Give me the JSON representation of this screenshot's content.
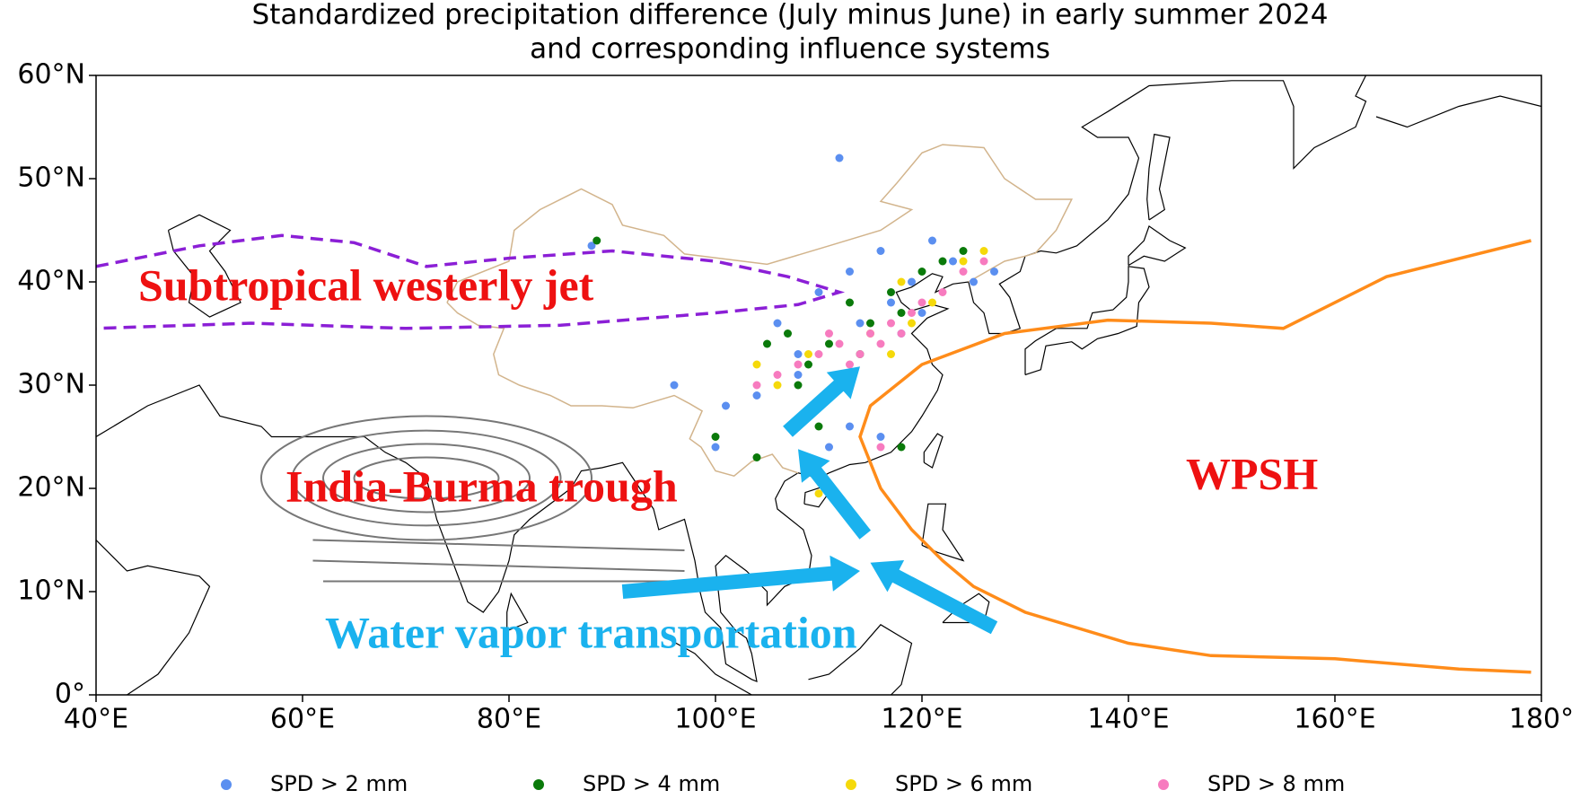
{
  "chart_data": {
    "type": "map",
    "title": [
      "Standardized precipitation difference (July minus June) in early summer 2024",
      "and corresponding influence systems"
    ],
    "xlim": [
      40,
      180
    ],
    "ylim": [
      0,
      60
    ],
    "xticks": [
      {
        "value": 40,
        "label": "40°E"
      },
      {
        "value": 60,
        "label": "60°E"
      },
      {
        "value": 80,
        "label": "80°E"
      },
      {
        "value": 100,
        "label": "100°E"
      },
      {
        "value": 120,
        "label": "120°E"
      },
      {
        "value": 140,
        "label": "140°E"
      },
      {
        "value": 160,
        "label": "160°E"
      },
      {
        "value": 180,
        "label": "180°"
      }
    ],
    "yticks": [
      {
        "value": 0,
        "label": "0°"
      },
      {
        "value": 10,
        "label": "10°N"
      },
      {
        "value": 20,
        "label": "20°N"
      },
      {
        "value": 30,
        "label": "30°N"
      },
      {
        "value": 40,
        "label": "40°N"
      },
      {
        "value": 50,
        "label": "50°N"
      },
      {
        "value": 60,
        "label": "60°N"
      }
    ],
    "annotations": [
      "Subtropical westerly jet",
      "India-Burma  trough",
      "WPSH",
      "Water vapor transportation"
    ],
    "series": [
      {
        "name": "SPD > 2 mm",
        "color": "#5b8ff0",
        "x": [
          112,
          88,
          104,
          106,
          108,
          110,
          113,
          116,
          117,
          119,
          121,
          123,
          100,
          101,
          113,
          116,
          118,
          96,
          108,
          120,
          125,
          114,
          111,
          127
        ],
        "y": [
          52,
          43.5,
          29,
          36,
          33,
          39,
          41,
          43,
          38,
          40,
          44,
          42,
          24,
          28,
          26,
          25,
          35,
          30,
          31,
          37,
          40,
          36,
          24,
          41
        ]
      },
      {
        "name": "SPD > 4 mm",
        "color": "#0a7a0a",
        "x": [
          88.5,
          100,
          105,
          107,
          109,
          111,
          113,
          115,
          117,
          120,
          122,
          124,
          104,
          110,
          118,
          114,
          108,
          118
        ],
        "y": [
          44,
          25,
          34,
          35,
          32,
          34,
          38,
          36,
          39,
          41,
          42,
          43,
          23,
          26,
          37,
          33,
          30,
          24
        ]
      },
      {
        "name": "SPD > 6 mm",
        "color": "#f5d90a",
        "x": [
          104,
          106,
          109,
          112,
          115,
          118,
          121,
          124,
          126,
          110,
          117,
          119
        ],
        "y": [
          32,
          30,
          33,
          31,
          35,
          40,
          38,
          42,
          43,
          19.5,
          33,
          36
        ]
      },
      {
        "name": "SPD > 8 mm",
        "color": "#f77bbf",
        "x": [
          104,
          106,
          108,
          110,
          112,
          114,
          115,
          116,
          117,
          118,
          119,
          120,
          122,
          124,
          126,
          116,
          113,
          111
        ],
        "y": [
          30,
          31,
          32,
          33,
          34,
          33,
          35,
          34,
          36,
          35,
          37,
          38,
          39,
          41,
          42,
          24,
          32,
          35
        ]
      }
    ],
    "jet": {
      "color": "#8b1fd6",
      "x": [
        40,
        50,
        58,
        65,
        72,
        80,
        90,
        100,
        107,
        112,
        108,
        100,
        85,
        70,
        55,
        40
      ],
      "y": [
        41.5,
        43.5,
        44.5,
        43.8,
        41.5,
        42.3,
        43,
        42,
        40.5,
        39,
        37.8,
        37,
        35.8,
        35.5,
        36,
        35.5
      ]
    },
    "wpsh": {
      "color": "#ff8c1a",
      "x": [
        179,
        165,
        155,
        148,
        138,
        128,
        120,
        115,
        114,
        116,
        119,
        122,
        125,
        130,
        140,
        148,
        160,
        172,
        179
      ],
      "y": [
        44,
        40.5,
        35.5,
        36,
        36.3,
        35,
        32,
        28,
        25,
        20,
        16,
        13,
        10.5,
        8,
        5,
        3.8,
        3.5,
        2.5,
        2.2
      ]
    }
  }
}
